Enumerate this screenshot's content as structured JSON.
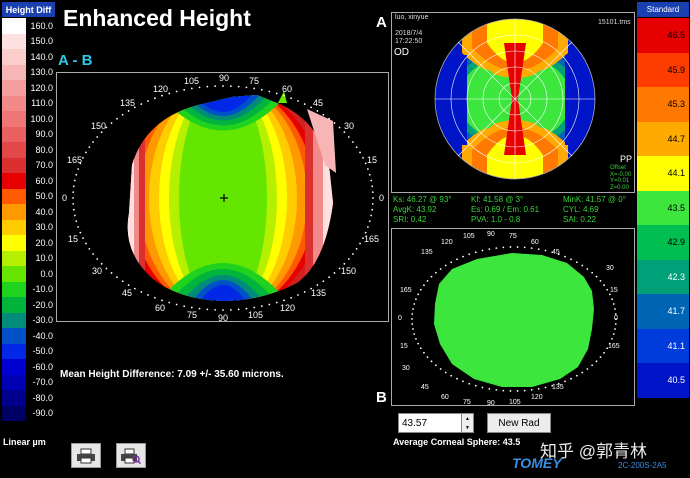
{
  "title": "Enhanced Height",
  "map_label": "A - B",
  "left_scale": {
    "title": "Height Diff",
    "unit_label": "Linear µm",
    "levels": [
      {
        "label": "160.0",
        "color": "#ffffff"
      },
      {
        "label": "150.0",
        "color": "#fde0e0"
      },
      {
        "label": "140.0",
        "color": "#fbcccc"
      },
      {
        "label": "130.0",
        "color": "#f8b5b5"
      },
      {
        "label": "120.0",
        "color": "#f59e9e"
      },
      {
        "label": "110.0",
        "color": "#f28a8a"
      },
      {
        "label": "100.0",
        "color": "#ee7676"
      },
      {
        "label": "90.0",
        "color": "#ea5f5f"
      },
      {
        "label": "80.0",
        "color": "#e34848"
      },
      {
        "label": "70.0",
        "color": "#dc2f2f"
      },
      {
        "label": "60.0",
        "color": "#e60000"
      },
      {
        "label": "50.0",
        "color": "#ff5a00"
      },
      {
        "label": "40.0",
        "color": "#ff9900"
      },
      {
        "label": "30.0",
        "color": "#ffcc00"
      },
      {
        "label": "20.0",
        "color": "#ffff00"
      },
      {
        "label": "10.0",
        "color": "#b4f000"
      },
      {
        "label": "0.0",
        "color": "#64e600"
      },
      {
        "label": "-10.0",
        "color": "#1ed21e"
      },
      {
        "label": "-20.0",
        "color": "#00b43c"
      },
      {
        "label": "-30.0",
        "color": "#008c78"
      },
      {
        "label": "-40.0",
        "color": "#0050c8"
      },
      {
        "label": "-50.0",
        "color": "#0028e6"
      },
      {
        "label": "-60.0",
        "color": "#0000d2"
      },
      {
        "label": "-70.0",
        "color": "#0000b4"
      },
      {
        "label": "-80.0",
        "color": "#00008c"
      },
      {
        "label": "-90.0",
        "color": "#000064"
      }
    ]
  },
  "right_scale": {
    "title": "Standard",
    "levels": [
      {
        "label": "46.5",
        "color": "#e60000"
      },
      {
        "label": "45.9",
        "color": "#ff3c00"
      },
      {
        "label": "45.3",
        "color": "#ff7800"
      },
      {
        "label": "44.7",
        "color": "#ffaa00"
      },
      {
        "label": "44.1",
        "color": "#ffff00"
      },
      {
        "label": "43.5",
        "color": "#3ce63c"
      },
      {
        "label": "42.9",
        "color": "#00be50"
      },
      {
        "label": "42.3",
        "color": "#00a078"
      },
      {
        "label": "41.7",
        "color": "#0064b4"
      },
      {
        "label": "41.1",
        "color": "#003cdc"
      },
      {
        "label": "40.5",
        "color": "#0014c8"
      }
    ]
  },
  "axis_labels": {
    "main": {
      "top": [
        "150",
        "135",
        "120",
        "105",
        "90",
        "75",
        "60",
        "45",
        "30"
      ],
      "left": [
        "165",
        "0",
        "15"
      ],
      "right": [
        "15",
        "0",
        "165"
      ],
      "bottom": [
        "30",
        "45",
        "60",
        "75",
        "90",
        "105",
        "120",
        "135",
        "150"
      ]
    },
    "b": {
      "top": [
        "135",
        "120",
        "105",
        "90",
        "75",
        "60",
        "45"
      ],
      "left": [
        "165",
        "0",
        "15",
        "30"
      ],
      "right": [
        "30",
        "15",
        "0",
        "165"
      ],
      "bottom": [
        "45",
        "60",
        "75",
        "90",
        "105",
        "120",
        "135"
      ]
    }
  },
  "mean_height_diff": "Mean Height Difference: 7.09 +/- 35.60 microns.",
  "map_a": {
    "label": "A",
    "patient_name": "luo, xinyue",
    "date": "2018/7/4",
    "time": "17:22:50",
    "eye": "OD",
    "tms_id": "15101.tms",
    "pp_label": "PP",
    "offset_lines": [
      "Offset",
      "X=-0.00",
      "Y=0.01",
      "Z=0.00"
    ],
    "stats": [
      [
        "Ks: 46.27 @ 93°",
        "Kf: 41.58 @ 3°",
        "MinK: 41.57 @ 0°"
      ],
      [
        "AvgK: 43.92",
        "Es: 0.69 / Em: 0.61",
        "CYL: 4.69"
      ],
      [
        "SRI: 0.42",
        "PVA: 1.0 - 0.8",
        "SAI: 0.22"
      ]
    ]
  },
  "map_b": {
    "label": "B"
  },
  "rad_value": "43.57",
  "new_rad_label": "New Rad",
  "avg_corneal_sphere": "Average Corneal Sphere: 43.5",
  "watermark": "知乎 @郭青林",
  "brand": "TOMEY",
  "model": "2C-200S-2A5"
}
